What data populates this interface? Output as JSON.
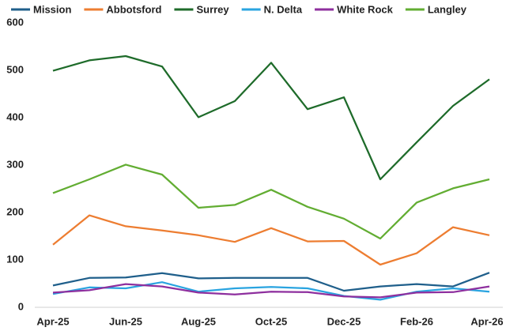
{
  "chart_data": {
    "type": "line",
    "categories": [
      "Apr-25",
      null,
      "Jun-25",
      null,
      "Aug-25",
      null,
      "Oct-25",
      null,
      "Dec-25",
      null,
      "Feb-26",
      null,
      "Apr-26"
    ],
    "series": [
      {
        "name": "Mission",
        "color": "#1f5f8b",
        "values": [
          46,
          62,
          63,
          72,
          61,
          62,
          62,
          62,
          35,
          44,
          49,
          44,
          73
        ]
      },
      {
        "name": "Abbotsford",
        "color": "#ed7d31",
        "values": [
          132,
          194,
          171,
          162,
          152,
          138,
          167,
          139,
          140,
          90,
          114,
          169,
          152
        ]
      },
      {
        "name": "Surrey",
        "color": "#1e6b2a",
        "values": [
          499,
          521,
          530,
          508,
          401,
          435,
          516,
          418,
          443,
          270,
          348,
          425,
          481
        ]
      },
      {
        "name": "N. Delta",
        "color": "#2aa4e0",
        "values": [
          28,
          42,
          40,
          53,
          33,
          40,
          43,
          40,
          24,
          16,
          33,
          40,
          33
        ]
      },
      {
        "name": "White Rock",
        "color": "#8e2f9e",
        "values": [
          31,
          36,
          49,
          44,
          31,
          27,
          33,
          32,
          23,
          21,
          31,
          32,
          44
        ]
      },
      {
        "name": "Langley",
        "color": "#62ad32",
        "values": [
          241,
          270,
          301,
          280,
          210,
          216,
          248,
          212,
          187,
          145,
          221,
          251,
          270
        ]
      }
    ],
    "ylim": [
      0,
      600
    ],
    "yticks": [
      0,
      100,
      200,
      300,
      400,
      500,
      600
    ],
    "grid": false,
    "legend": "top"
  }
}
